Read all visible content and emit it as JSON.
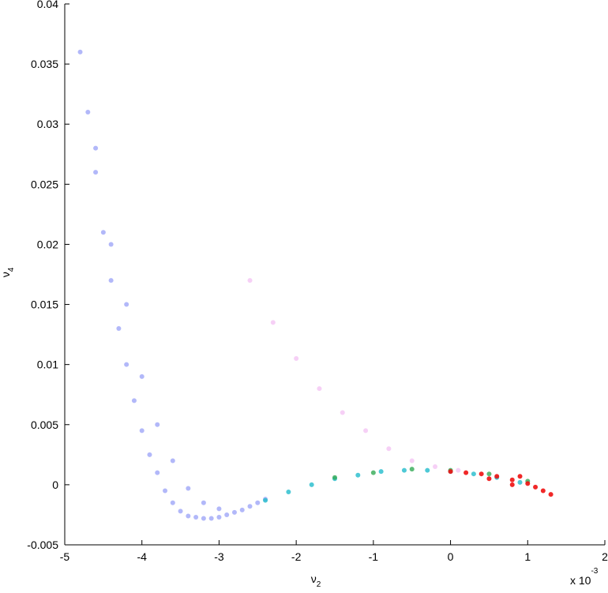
{
  "chart_data": {
    "type": "scatter",
    "x_label": {
      "text": "ν",
      "subscript": "2"
    },
    "y_label": {
      "text": "ν",
      "subscript": "4"
    },
    "x_multiplier": {
      "text": "x 10",
      "superscript": "-3"
    },
    "xlim": [
      -5,
      2
    ],
    "xticks": [
      -5,
      -4,
      -3,
      -2,
      -1,
      0,
      1,
      2
    ],
    "ylim": [
      -0.005,
      0.04
    ],
    "yticks": [
      -0.005,
      0,
      0.005,
      0.01,
      0.015,
      0.02,
      0.025,
      0.03,
      0.035,
      0.04
    ],
    "grid": false,
    "series": [
      {
        "color": "#2233ee",
        "alpha": 0.35,
        "x": [
          -4.8,
          -4.7,
          -4.6,
          -4.5,
          -4.4,
          -4.3,
          -4.2,
          -4.1,
          -4.0,
          -3.9,
          -3.8,
          -3.7,
          -3.6,
          -3.5,
          -3.4,
          -3.3,
          -3.2,
          -3.1,
          -3.0,
          -2.9,
          -2.8,
          -2.7,
          -2.6,
          -2.5,
          -2.4,
          -4.6,
          -4.4,
          -4.2,
          -4.0,
          -3.8,
          -3.6,
          -3.4,
          -3.2,
          -3.0
        ],
        "y": [
          0.036,
          0.031,
          0.026,
          0.021,
          0.017,
          0.013,
          0.01,
          0.007,
          0.0045,
          0.0025,
          0.001,
          -0.0005,
          -0.0015,
          -0.0022,
          -0.0026,
          -0.0027,
          -0.0028,
          -0.0028,
          -0.0027,
          -0.0025,
          -0.0023,
          -0.0021,
          -0.0018,
          -0.0015,
          -0.0012,
          0.028,
          0.02,
          0.015,
          0.009,
          0.005,
          0.002,
          -0.0003,
          -0.0015,
          -0.002
        ]
      },
      {
        "color": "#dd44dd",
        "alpha": 0.25,
        "x": [
          -2.6,
          -2.3,
          -2.0,
          -1.7,
          -1.4,
          -1.1,
          -0.8,
          -0.5,
          -0.2,
          0.1
        ],
        "y": [
          0.017,
          0.0135,
          0.0105,
          0.008,
          0.006,
          0.0045,
          0.003,
          0.002,
          0.0015,
          0.0012
        ]
      },
      {
        "color": "#22bbcc",
        "alpha": 0.8,
        "x": [
          -2.4,
          -2.1,
          -1.8,
          -1.5,
          -1.2,
          -0.9,
          -0.6,
          -0.3,
          0,
          0.3,
          0.6,
          0.9
        ],
        "y": [
          -0.0013,
          -0.0006,
          0,
          0.0005,
          0.0008,
          0.0011,
          0.0012,
          0.0012,
          0.0011,
          0.0009,
          0.0006,
          0.0002
        ]
      },
      {
        "color": "#33aa55",
        "alpha": 0.8,
        "x": [
          -1.5,
          -1.0,
          -0.5,
          0,
          0.5,
          1.0
        ],
        "y": [
          0.0006,
          0.001,
          0.0013,
          0.0012,
          0.0009,
          0.0003
        ]
      },
      {
        "color": "#ee1111",
        "alpha": 0.9,
        "x": [
          0,
          0.2,
          0.4,
          0.6,
          0.8,
          1.0,
          1.1,
          1.2,
          1.3,
          0.5,
          0.8,
          0.9
        ],
        "y": [
          0.0011,
          0.001,
          0.0009,
          0.0007,
          0.0004,
          0.0001,
          -0.0002,
          -0.0005,
          -0.0008,
          0.0005,
          0,
          0.0007
        ]
      }
    ]
  }
}
